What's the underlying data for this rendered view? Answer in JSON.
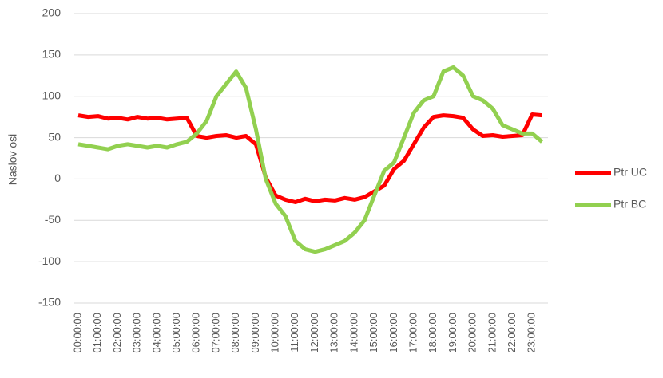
{
  "chart_data": {
    "type": "line",
    "y_label": "Naslov osi",
    "categories": [
      "00:00:00",
      null,
      "01:00:00",
      null,
      "02:00:00",
      null,
      "03:00:00",
      null,
      "04:00:00",
      null,
      "05:00:00",
      null,
      "06:00:00",
      null,
      "07:00:00",
      null,
      "08:00:00",
      null,
      "09:00:00",
      null,
      "10:00:00",
      null,
      "11:00:00",
      null,
      "12:00:00",
      null,
      "13:00:00",
      null,
      "14:00:00",
      null,
      "15:00:00",
      null,
      "16:00:00",
      null,
      "17:00:00",
      null,
      "18:00:00",
      null,
      "19:00:00",
      null,
      "20:00:00",
      null,
      "21:00:00",
      null,
      "22:00:00",
      null,
      "23:00:00",
      null
    ],
    "series": [
      {
        "name": "Ptr UC",
        "color": "#ff0000",
        "values": [
          77,
          75,
          76,
          73,
          74,
          72,
          75,
          73,
          74,
          72,
          73,
          74,
          52,
          50,
          52,
          53,
          50,
          52,
          42,
          2,
          -20,
          -25,
          -28,
          -24,
          -27,
          -25,
          -26,
          -23,
          -25,
          -22,
          -15,
          -8,
          12,
          22,
          42,
          62,
          75,
          77,
          76,
          74,
          60,
          52,
          53,
          51,
          52,
          53,
          78,
          77
        ]
      },
      {
        "name": "Ptr BC",
        "color": "#92d050",
        "values": [
          42,
          40,
          38,
          36,
          40,
          42,
          40,
          38,
          40,
          38,
          42,
          45,
          55,
          70,
          100,
          115,
          130,
          110,
          60,
          0,
          -30,
          -45,
          -75,
          -85,
          -88,
          -85,
          -80,
          -75,
          -65,
          -50,
          -20,
          10,
          20,
          50,
          80,
          95,
          100,
          130,
          135,
          125,
          100,
          95,
          85,
          65,
          60,
          55,
          55,
          45
        ]
      }
    ],
    "ylim": [
      -150,
      200
    ],
    "yticks": [
      -150,
      -100,
      -50,
      0,
      50,
      100,
      150,
      200
    ],
    "grid": true,
    "legend": "right"
  }
}
